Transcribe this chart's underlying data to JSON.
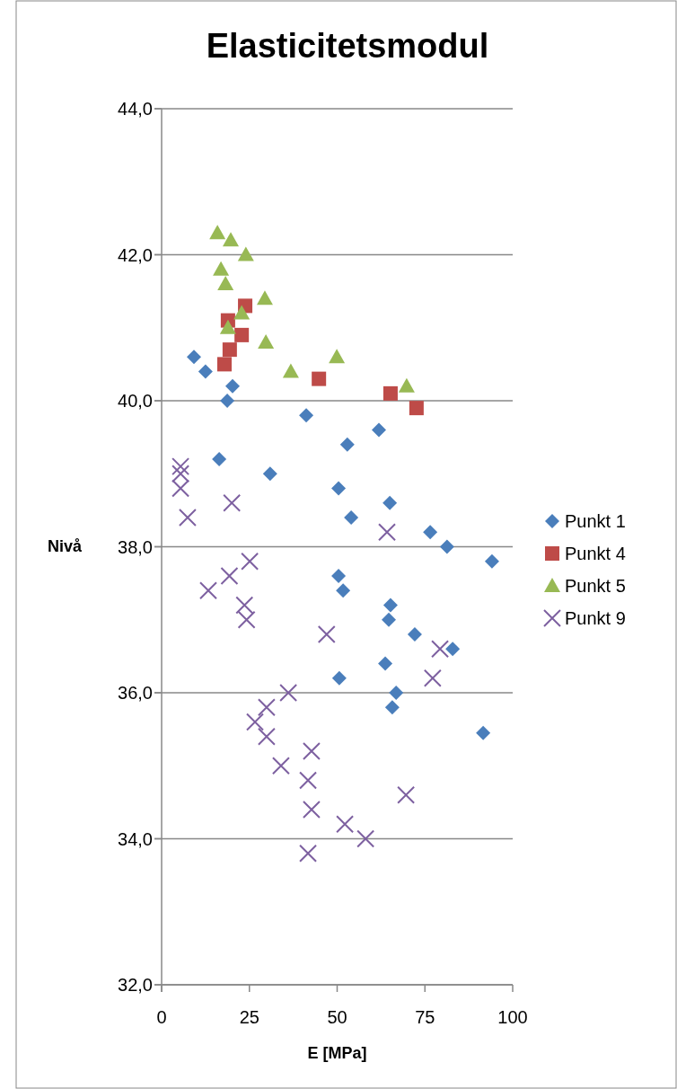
{
  "chart_data": {
    "type": "scatter",
    "title": "Elasticitetsmodul",
    "xlabel": "E [MPa]",
    "ylabel": "Nivå",
    "xlim": [
      0,
      100
    ],
    "xticks": [
      0,
      25,
      50,
      75,
      100
    ],
    "ylim": [
      32,
      44
    ],
    "yticks": [
      {
        "value": 32,
        "label": "32,0"
      },
      {
        "value": 34,
        "label": "34,0"
      },
      {
        "value": 36,
        "label": "36,0"
      },
      {
        "value": 38,
        "label": "38,0"
      },
      {
        "value": 40,
        "label": "40,0"
      },
      {
        "value": 42,
        "label": "42,0"
      },
      {
        "value": 44,
        "label": "44,0"
      }
    ],
    "grid": "y",
    "legend": "right",
    "series": [
      {
        "name": "Punkt 1",
        "color": "#4a7ebb",
        "marker": "diamond",
        "x": [
          9.2,
          12.5,
          20.2,
          18.7,
          41.2,
          16.4,
          30.9,
          52.9,
          61.9,
          50.4,
          54.0,
          65.0,
          76.5,
          81.3,
          94.1,
          50.4,
          51.7,
          65.2,
          64.7,
          72.1,
          82.9,
          63.7,
          50.6,
          66.8,
          65.7,
          91.6
        ],
        "values": [
          40.6,
          40.4,
          40.2,
          40.0,
          39.8,
          39.2,
          39.0,
          39.4,
          39.6,
          38.8,
          38.4,
          38.6,
          38.2,
          38.0,
          37.8,
          37.6,
          37.4,
          37.2,
          37.0,
          36.8,
          36.6,
          36.4,
          36.2,
          36.0,
          35.8,
          35.45
        ]
      },
      {
        "name": "Punkt 4",
        "color": "#be4b48",
        "marker": "square",
        "x": [
          17.9,
          19.4,
          22.8,
          18.9,
          23.8,
          44.8,
          65.2,
          72.6
        ],
        "values": [
          40.5,
          40.7,
          40.9,
          41.1,
          41.3,
          40.3,
          40.1,
          39.9
        ]
      },
      {
        "name": "Punkt 5",
        "color": "#98b954",
        "marker": "triangle",
        "x": [
          15.9,
          19.7,
          24.0,
          16.9,
          18.2,
          29.4,
          22.8,
          18.9,
          29.7,
          36.8,
          49.9,
          69.8
        ],
        "values": [
          42.3,
          42.2,
          42.0,
          41.8,
          41.6,
          41.4,
          41.2,
          41.0,
          40.8,
          40.4,
          40.6,
          40.2
        ]
      },
      {
        "name": "Punkt 9",
        "color": "#7d60a0",
        "marker": "cross",
        "x": [
          5.4,
          5.4,
          5.4,
          7.4,
          20.0,
          64.2,
          25.1,
          19.3,
          13.3,
          23.6,
          24.2,
          47.0,
          79.3,
          77.2,
          36.1,
          29.9,
          26.6,
          29.9,
          42.7,
          34.0,
          41.7,
          69.6,
          42.7,
          52.2,
          58.1,
          41.7
        ],
        "values": [
          39.1,
          39.0,
          38.8,
          38.4,
          38.6,
          38.2,
          37.8,
          37.6,
          37.4,
          37.2,
          37.0,
          36.8,
          36.6,
          36.2,
          36.0,
          35.8,
          35.6,
          35.4,
          35.2,
          35.0,
          34.8,
          34.6,
          34.4,
          34.2,
          34.0,
          33.8
        ]
      }
    ]
  }
}
